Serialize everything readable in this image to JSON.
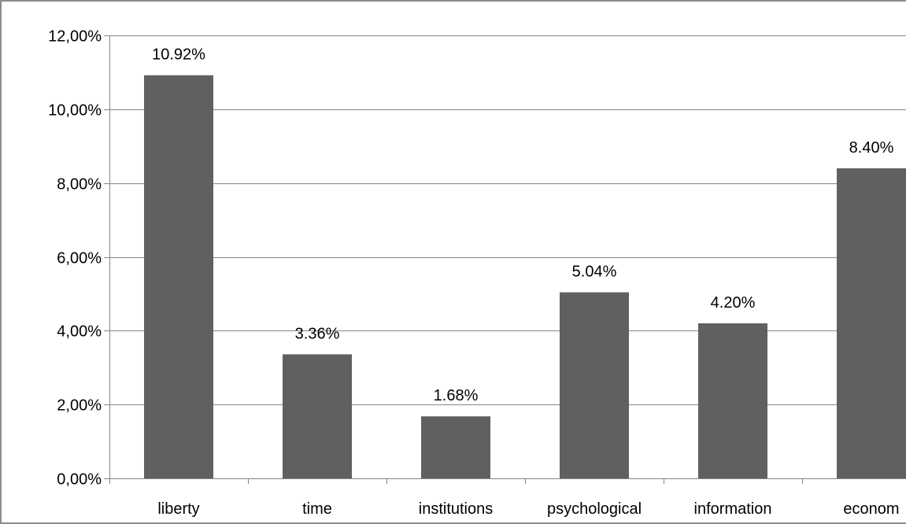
{
  "chart_data": {
    "type": "bar",
    "title": "",
    "xlabel": "",
    "ylabel": "",
    "categories": [
      "liberty",
      "time",
      "institutions",
      "psychological",
      "information",
      "econom"
    ],
    "values": [
      10.92,
      3.36,
      1.68,
      5.04,
      4.2,
      8.4
    ],
    "value_labels": [
      "10.92%",
      "3.36%",
      "1.68%",
      "5.04%",
      "4.20%",
      "8.40%"
    ],
    "y_ticks": [
      0,
      2,
      4,
      6,
      8,
      10,
      12
    ],
    "y_tick_labels": [
      "0,00%",
      "2,00%",
      "4,00%",
      "6,00%",
      "8,00%",
      "10,00%",
      "12,00%"
    ],
    "ylim": [
      0,
      12
    ],
    "grid": true,
    "legend": "none",
    "colors": {
      "bar": "#606060",
      "grid": "#868686",
      "axis": "#868686",
      "frame": "#8c8c8c"
    }
  }
}
